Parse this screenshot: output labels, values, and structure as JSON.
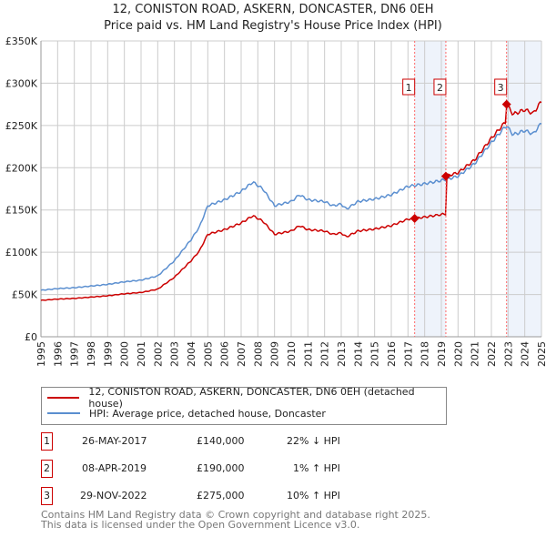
{
  "title_line1": "12, CONISTON ROAD, ASKERN, DONCASTER, DN6 0EH",
  "title_line2": "Price paid vs. HM Land Registry's House Price Index (HPI)",
  "colors": {
    "price": "#cc0000",
    "hpi": "#5b8fd0",
    "shade": "#eef3fb",
    "grid": "#cccccc"
  },
  "chart_data": {
    "type": "line",
    "xlim": [
      1995,
      2025
    ],
    "ylim": [
      0,
      350000
    ],
    "yticks": [
      0,
      50000,
      100000,
      150000,
      200000,
      250000,
      300000,
      350000
    ],
    "ytick_labels": [
      "£0",
      "£50K",
      "£100K",
      "£150K",
      "£200K",
      "£250K",
      "£300K",
      "£350K"
    ],
    "xtick_labels": [
      "1995",
      "1996",
      "1997",
      "1998",
      "1999",
      "2000",
      "2001",
      "2002",
      "2003",
      "2004",
      "2005",
      "2006",
      "2007",
      "2008",
      "2009",
      "2010",
      "2011",
      "2012",
      "2013",
      "2014",
      "2015",
      "2016",
      "2017",
      "2018",
      "2019",
      "2020",
      "2021",
      "2022",
      "2023",
      "2024",
      "2025"
    ],
    "grid": true,
    "series": [
      {
        "name": "HPI: Average price, detached house, Doncaster",
        "x": [
          1995,
          1996,
          1997,
          1998,
          1999,
          2000,
          2001,
          2002,
          2003,
          2004,
          2004.5,
          2005,
          2006,
          2007,
          2007.7,
          2008.3,
          2009,
          2010,
          2010.5,
          2011,
          2012,
          2012.5,
          2013,
          2013.3,
          2014,
          2015,
          2016,
          2017,
          2017.4,
          2018,
          2019,
          2019.27,
          2020,
          2021,
          2022,
          2022.9,
          2023.3,
          2024,
          2024.5,
          2025
        ],
        "values": [
          55000,
          57000,
          58000,
          60000,
          62000,
          65000,
          67000,
          72000,
          90000,
          115000,
          130000,
          155000,
          162000,
          172000,
          183000,
          175000,
          155000,
          160000,
          168000,
          162000,
          160000,
          155000,
          157000,
          151000,
          160000,
          163000,
          168000,
          178000,
          179000,
          181000,
          185000,
          186000,
          190000,
          205000,
          230000,
          250000,
          239000,
          244000,
          240000,
          253000
        ]
      },
      {
        "name": "12, CONISTON ROAD, ASKERN, DONCASTER, DN6 0EH (detached house)",
        "derived_from_hpi_and_sales": true
      }
    ],
    "sales": [
      {
        "n": "1",
        "year": 2017.4,
        "date": "26-MAY-2017",
        "price": 140000,
        "price_label": "£140,000",
        "hpi_label": "22% ↓ HPI"
      },
      {
        "n": "2",
        "year": 2019.27,
        "date": "08-APR-2019",
        "price": 190000,
        "price_label": "£190,000",
        "hpi_label": "1% ↑ HPI"
      },
      {
        "n": "3",
        "year": 2022.91,
        "date": "29-NOV-2022",
        "price": 275000,
        "price_label": "£275,000",
        "hpi_label": "10% ↑ HPI"
      }
    ]
  },
  "legend": {
    "price_label": "12, CONISTON ROAD, ASKERN, DONCASTER, DN6 0EH (detached house)",
    "hpi_label": "HPI: Average price, detached house, Doncaster"
  },
  "footer": {
    "line1": "Contains HM Land Registry data © Crown copyright and database right 2025.",
    "line2": "This data is licensed under the Open Government Licence v3.0."
  }
}
